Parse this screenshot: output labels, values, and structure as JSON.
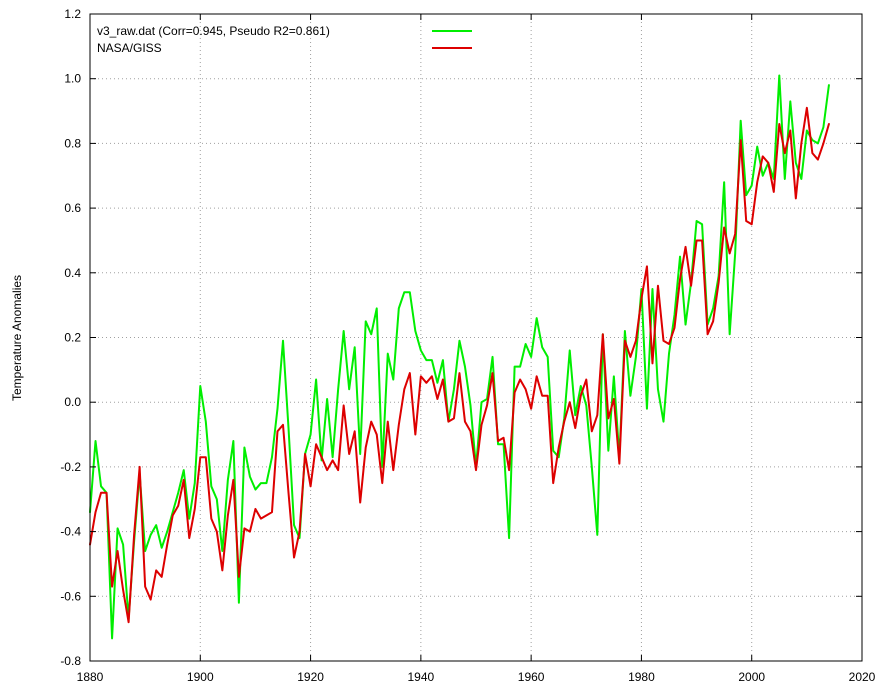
{
  "chart_data": {
    "type": "line",
    "xlabel": "",
    "ylabel": "Temperature Anomalies",
    "xlim": [
      1880,
      2020
    ],
    "ylim": [
      -0.8,
      1.2
    ],
    "xticks": [
      1880,
      1900,
      1920,
      1940,
      1960,
      1980,
      2000,
      2020
    ],
    "yticks": [
      -0.8,
      -0.6,
      -0.4,
      -0.2,
      0.0,
      0.2,
      0.4,
      0.6,
      0.8,
      1.0,
      1.2
    ],
    "xtick_labels": [
      "1880",
      "1900",
      "1920",
      "1940",
      "1960",
      "1980",
      "2000",
      "2020"
    ],
    "ytick_labels": [
      "-0.8",
      "-0.6",
      "-0.4",
      "-0.2",
      "0.0",
      "0.2",
      "0.4",
      "0.6",
      "0.8",
      "1.0",
      "1.2"
    ],
    "grid": true,
    "legend_position": "top-left",
    "x": [
      1880,
      1881,
      1882,
      1883,
      1884,
      1885,
      1886,
      1887,
      1888,
      1889,
      1890,
      1891,
      1892,
      1893,
      1894,
      1895,
      1896,
      1897,
      1898,
      1899,
      1900,
      1901,
      1902,
      1903,
      1904,
      1905,
      1906,
      1907,
      1908,
      1909,
      1910,
      1911,
      1912,
      1913,
      1914,
      1915,
      1916,
      1917,
      1918,
      1919,
      1920,
      1921,
      1922,
      1923,
      1924,
      1925,
      1926,
      1927,
      1928,
      1929,
      1930,
      1931,
      1932,
      1933,
      1934,
      1935,
      1936,
      1937,
      1938,
      1939,
      1940,
      1941,
      1942,
      1943,
      1944,
      1945,
      1946,
      1947,
      1948,
      1949,
      1950,
      1951,
      1952,
      1953,
      1954,
      1955,
      1956,
      1957,
      1958,
      1959,
      1960,
      1961,
      1962,
      1963,
      1964,
      1965,
      1966,
      1967,
      1968,
      1969,
      1970,
      1971,
      1972,
      1973,
      1974,
      1975,
      1976,
      1977,
      1978,
      1979,
      1980,
      1981,
      1982,
      1983,
      1984,
      1985,
      1986,
      1987,
      1988,
      1989,
      1990,
      1991,
      1992,
      1993,
      1994,
      1995,
      1996,
      1997,
      1998,
      1999,
      2000,
      2001,
      2002,
      2003,
      2004,
      2005,
      2006,
      2007,
      2008,
      2009,
      2010,
      2011,
      2012,
      2013,
      2014
    ],
    "series": [
      {
        "name": "v3_raw.dat (Corr=0.945,  Pseudo R2=0.861)",
        "color": "#00ee00",
        "values": [
          -0.34,
          -0.12,
          -0.26,
          -0.28,
          -0.73,
          -0.39,
          -0.44,
          -0.67,
          -0.43,
          -0.22,
          -0.46,
          -0.41,
          -0.38,
          -0.45,
          -0.4,
          -0.34,
          -0.28,
          -0.21,
          -0.36,
          -0.25,
          0.05,
          -0.06,
          -0.26,
          -0.3,
          -0.46,
          -0.24,
          -0.12,
          -0.62,
          -0.14,
          -0.23,
          -0.27,
          -0.25,
          -0.25,
          -0.17,
          -0.02,
          0.19,
          -0.08,
          -0.38,
          -0.42,
          -0.16,
          -0.1,
          0.07,
          -0.18,
          0.01,
          -0.17,
          0.04,
          0.22,
          0.04,
          0.17,
          -0.16,
          0.25,
          0.21,
          0.29,
          -0.2,
          0.15,
          0.07,
          0.29,
          0.34,
          0.34,
          0.22,
          0.16,
          0.13,
          0.13,
          0.06,
          0.13,
          -0.06,
          0.04,
          0.19,
          0.11,
          -0.01,
          -0.2,
          0.0,
          0.01,
          0.14,
          -0.13,
          -0.13,
          -0.42,
          0.11,
          0.11,
          0.18,
          0.14,
          0.26,
          0.17,
          0.14,
          -0.15,
          -0.17,
          -0.05,
          0.16,
          -0.04,
          0.05,
          -0.01,
          -0.2,
          -0.41,
          0.21,
          -0.15,
          0.08,
          -0.17,
          0.22,
          0.02,
          0.14,
          0.35,
          -0.02,
          0.35,
          0.04,
          -0.06,
          0.15,
          0.27,
          0.45,
          0.24,
          0.37,
          0.56,
          0.55,
          0.24,
          0.29,
          0.39,
          0.68,
          0.21,
          0.46,
          0.87,
          0.64,
          0.67,
          0.79,
          0.7,
          0.74,
          0.69,
          1.01,
          0.69,
          0.93,
          0.74,
          0.69,
          0.84,
          0.81,
          0.8,
          0.85,
          0.98
        ]
      },
      {
        "name": "NASA/GISS",
        "color": "#dd0000",
        "values": [
          -0.44,
          -0.34,
          -0.28,
          -0.28,
          -0.57,
          -0.46,
          -0.58,
          -0.68,
          -0.41,
          -0.2,
          -0.57,
          -0.61,
          -0.52,
          -0.54,
          -0.44,
          -0.35,
          -0.32,
          -0.24,
          -0.42,
          -0.33,
          -0.17,
          -0.17,
          -0.36,
          -0.4,
          -0.52,
          -0.35,
          -0.24,
          -0.54,
          -0.39,
          -0.4,
          -0.33,
          -0.36,
          -0.35,
          -0.34,
          -0.09,
          -0.07,
          -0.28,
          -0.48,
          -0.4,
          -0.16,
          -0.26,
          -0.13,
          -0.17,
          -0.21,
          -0.18,
          -0.21,
          -0.01,
          -0.16,
          -0.09,
          -0.31,
          -0.14,
          -0.06,
          -0.1,
          -0.25,
          -0.06,
          -0.21,
          -0.07,
          0.04,
          0.09,
          -0.1,
          0.08,
          0.06,
          0.08,
          0.01,
          0.07,
          -0.06,
          -0.05,
          0.09,
          -0.06,
          -0.09,
          -0.21,
          -0.07,
          -0.01,
          0.09,
          -0.12,
          -0.11,
          -0.21,
          0.03,
          0.07,
          0.04,
          -0.02,
          0.08,
          0.02,
          0.02,
          -0.25,
          -0.14,
          -0.06,
          0.0,
          -0.08,
          0.02,
          0.07,
          -0.09,
          -0.04,
          0.21,
          -0.05,
          0.01,
          -0.19,
          0.19,
          0.14,
          0.19,
          0.32,
          0.42,
          0.12,
          0.36,
          0.19,
          0.18,
          0.23,
          0.38,
          0.48,
          0.36,
          0.5,
          0.5,
          0.21,
          0.25,
          0.37,
          0.54,
          0.46,
          0.52,
          0.81,
          0.56,
          0.55,
          0.68,
          0.76,
          0.74,
          0.65,
          0.86,
          0.77,
          0.84,
          0.63,
          0.8,
          0.91,
          0.77,
          0.75,
          0.8,
          0.86
        ]
      }
    ]
  }
}
